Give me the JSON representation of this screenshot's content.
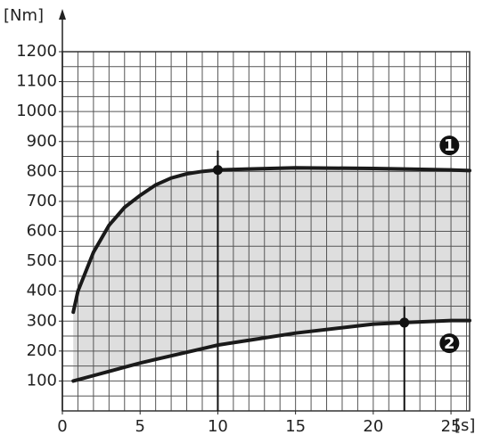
{
  "chart_data": {
    "type": "line",
    "ylabel": "[Nm]",
    "xlabel": "[s]",
    "x": [
      0.7,
      1,
      2,
      3,
      4,
      5,
      6,
      7,
      8,
      9,
      10,
      12,
      15,
      20,
      22,
      25,
      26.2
    ],
    "series": [
      {
        "name": "1",
        "color": "#1a1a1a",
        "values": [
          330,
          400,
          530,
          620,
          680,
          720,
          755,
          778,
          792,
          800,
          805,
          808,
          812,
          810,
          808,
          805,
          803
        ],
        "highlight_index": 10,
        "drop_top": 870,
        "label_x": 24.9,
        "label_y": 887
      },
      {
        "name": "2",
        "color": "#1a1a1a",
        "values": [
          100,
          104,
          118,
          132,
          146,
          160,
          172,
          184,
          196,
          208,
          220,
          236,
          260,
          290,
          295,
          302,
          302
        ],
        "highlight_index": 14,
        "drop_top": 350,
        "label_x": 24.9,
        "label_y": 226
      }
    ],
    "fill_between": true,
    "fill_color": "#dedede",
    "xlim": [
      0,
      26.2
    ],
    "ylim": [
      0,
      1200
    ],
    "xticks": [
      0,
      5,
      10,
      15,
      20,
      25
    ],
    "yticks": [
      100,
      200,
      300,
      400,
      500,
      600,
      700,
      800,
      900,
      1000,
      1100,
      1200
    ],
    "xgrid_step": 1,
    "ygrid_step": 50,
    "grid": true
  }
}
